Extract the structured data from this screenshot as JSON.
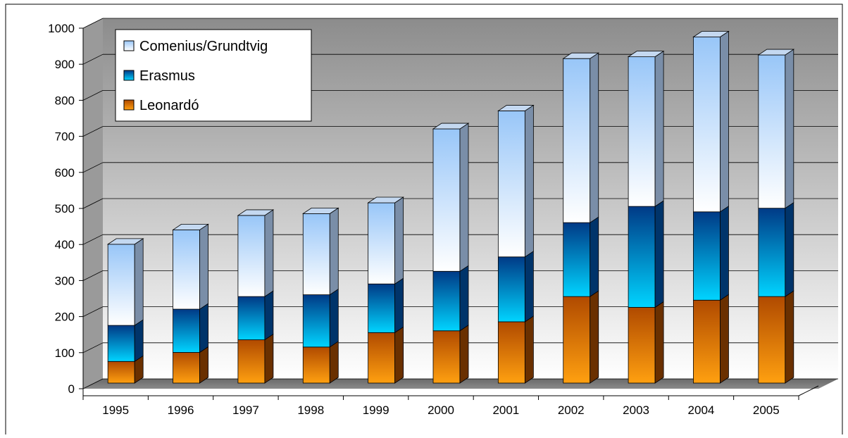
{
  "chart_data": {
    "type": "bar",
    "stacked": true,
    "three_d": true,
    "categories": [
      "1995",
      "1996",
      "1997",
      "1998",
      "1999",
      "2000",
      "2001",
      "2002",
      "2003",
      "2004",
      "2005"
    ],
    "series": [
      {
        "name": "Leonardó",
        "values": [
          60,
          85,
          120,
          100,
          140,
          145,
          170,
          240,
          210,
          230,
          240
        ]
      },
      {
        "name": "Erasmus",
        "values": [
          100,
          120,
          120,
          145,
          135,
          165,
          180,
          205,
          280,
          245,
          245
        ]
      },
      {
        "name": "Comenius/Grundtvig",
        "values": [
          225,
          220,
          225,
          225,
          225,
          395,
          405,
          455,
          415,
          485,
          425
        ]
      }
    ],
    "legend_order": [
      "Comenius/Grundtvig",
      "Erasmus",
      "Leonardó"
    ],
    "ylim": [
      0,
      1000
    ],
    "yticks": [
      0,
      100,
      200,
      300,
      400,
      500,
      600,
      700,
      800,
      900,
      1000
    ],
    "grid": true,
    "legend_position": "top-left",
    "title": "",
    "xlabel": "",
    "ylabel": "",
    "colors": {
      "Leonardó": {
        "top": "#b04a00",
        "bottom": "#ffa010",
        "side": "#6a3000"
      },
      "Erasmus": {
        "top": "#003a86",
        "bottom": "#00d4ff",
        "side": "#00346a"
      },
      "Comenius/Grundtvig": {
        "top": "#98c6f8",
        "bottom": "#ffffff",
        "side": "#7a8ea8"
      }
    }
  }
}
